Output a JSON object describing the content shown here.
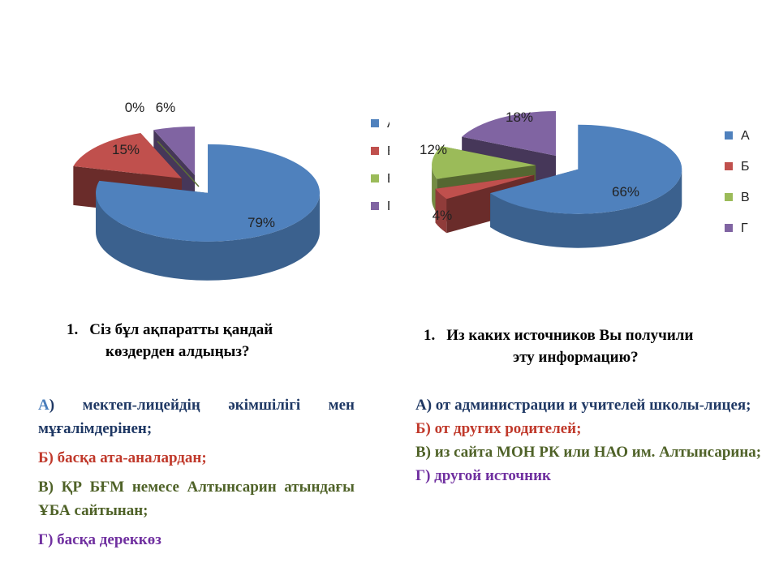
{
  "chart_data": [
    {
      "type": "pie",
      "categories": [
        "А",
        "Б",
        "В",
        "Г"
      ],
      "values": [
        79,
        15,
        0,
        6
      ],
      "labels": [
        "79%",
        "15%",
        "0%",
        "6%"
      ],
      "colors": [
        "#4f81bd",
        "#c0504d",
        "#9bbb59",
        "#8064a2"
      ],
      "legend_position": "right",
      "three_d": true,
      "exploded": true
    },
    {
      "type": "pie",
      "categories": [
        "А",
        "Б",
        "В",
        "Г"
      ],
      "values": [
        66,
        4,
        12,
        18
      ],
      "labels": [
        "66%",
        "4%",
        "12%",
        "18%"
      ],
      "colors": [
        "#4f81bd",
        "#c0504d",
        "#9bbb59",
        "#8064a2"
      ],
      "legend_position": "right",
      "three_d": true,
      "exploded": true
    }
  ],
  "left": {
    "question_number": "1.",
    "question_line1": "Сіз бұл ақпаратты қандай",
    "question_line2": "көздерден алдыңыз?",
    "answer_a_letter": "А",
    "answer_a_rest": ") мектеп-лицейдің әкімшілігі мен мұғалімдерінен;",
    "answer_b": "Б) басқа ата-аналардан;",
    "answer_v": "В) ҚР БҒМ немесе Алтынсарин атындағы ҰБА сайтынан;",
    "answer_g": "Г) басқа дереккөз"
  },
  "right": {
    "question_number": "1.",
    "question_line1": "Из каких источников Вы получили",
    "question_line2": "эту информацию?",
    "answer_a": "А) от администрации и учителей школы-лицея;",
    "answer_b": "Б) от других родителей;",
    "answer_v": "В) из сайта МОН РК или НАО им. Алтынсарина;",
    "answer_g": "Г) другой источник"
  }
}
